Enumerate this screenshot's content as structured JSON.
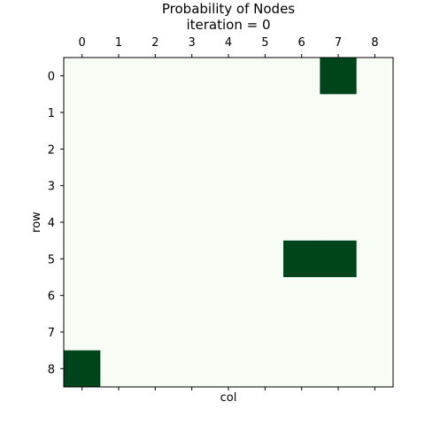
{
  "chart_data": {
    "type": "heatmap",
    "title": "Probability of Nodes",
    "subtitle": "iteration = 0",
    "xlabel": "col",
    "ylabel": "row",
    "x_ticks": [
      "0",
      "1",
      "2",
      "3",
      "4",
      "5",
      "6",
      "7",
      "8"
    ],
    "y_ticks": [
      "0",
      "1",
      "2",
      "3",
      "4",
      "5",
      "6",
      "7",
      "8"
    ],
    "grid": false,
    "colormap": {
      "low": "#f7fcf5",
      "high": "#00441b"
    },
    "values": [
      [
        0,
        0,
        0,
        0,
        0,
        0,
        0,
        1,
        0
      ],
      [
        0,
        0,
        0,
        0,
        0,
        0,
        0,
        0,
        0
      ],
      [
        0,
        0,
        0,
        0,
        0,
        0,
        0,
        0,
        0
      ],
      [
        0,
        0,
        0,
        0,
        0,
        0,
        0,
        0,
        0
      ],
      [
        0,
        0,
        0,
        0,
        0,
        0,
        0,
        0,
        0
      ],
      [
        0,
        0,
        0,
        0,
        0,
        0,
        1,
        1,
        0
      ],
      [
        0,
        0,
        0,
        0,
        0,
        0,
        0,
        0,
        0
      ],
      [
        0,
        0,
        0,
        0,
        0,
        0,
        0,
        0,
        0
      ],
      [
        1,
        0,
        0,
        0,
        0,
        0,
        0,
        0,
        0
      ]
    ]
  }
}
